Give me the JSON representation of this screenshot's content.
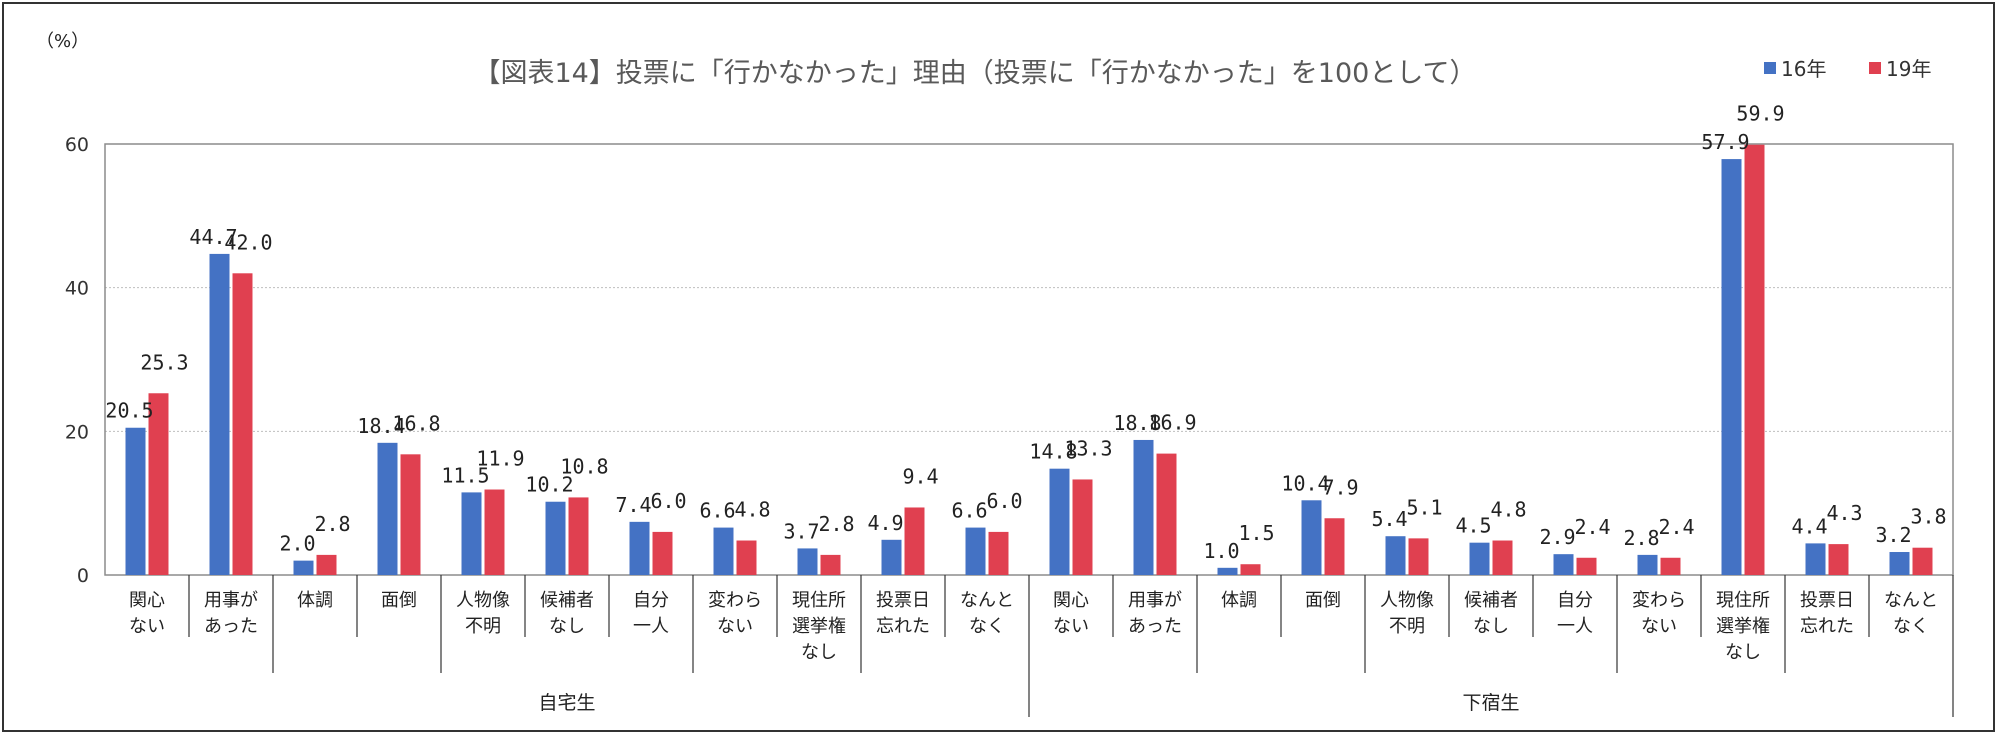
{
  "chart_data": {
    "type": "bar",
    "title": "【図表14】投票に「行かなかった」理由（投票に「行かなかった」を100として）",
    "unit_label": "（%）",
    "ylim": [
      0,
      60
    ],
    "yticks": [
      "0",
      "20",
      "40",
      "60"
    ],
    "grid": true,
    "legend_position": "top-right",
    "groups": [
      {
        "name": "自宅生",
        "categories": [
          "関心\nない",
          "用事が\nあった",
          "体調",
          "面倒",
          "人物像\n不明",
          "候補者\nなし",
          "自分\n一人",
          "変わら\nない",
          "現住所\n選挙権\nなし",
          "投票日\n忘れた",
          "なんと\nなく"
        ]
      },
      {
        "name": "下宿生",
        "categories": [
          "関心\nない",
          "用事が\nあった",
          "体調",
          "面倒",
          "人物像\n不明",
          "候補者\nなし",
          "自分\n一人",
          "変わら\nない",
          "現住所\n選挙権\nなし",
          "投票日\n忘れた",
          "なんと\nなく"
        ]
      }
    ],
    "series": [
      {
        "name": "16年",
        "color": "#4472C4",
        "values": [
          20.5,
          44.7,
          2.0,
          18.4,
          11.5,
          10.2,
          7.4,
          6.6,
          3.7,
          4.9,
          6.6,
          14.8,
          18.8,
          1.0,
          10.4,
          5.4,
          4.5,
          2.9,
          2.8,
          57.9,
          4.4,
          3.2
        ],
        "labels": [
          "20.5",
          "44.7",
          "2.0",
          "18.4",
          "11.5",
          "10.2",
          "7.4",
          "6.6",
          "3.7",
          "4.9",
          "6.6",
          "14.8",
          "18.8",
          "1.0",
          "10.4",
          "5.4",
          "4.5",
          "2.9",
          "2.8",
          "57.9",
          "4.4",
          "3.2"
        ]
      },
      {
        "name": "19年",
        "color": "#E04050",
        "values": [
          25.3,
          42.0,
          2.8,
          16.8,
          11.9,
          10.8,
          6.0,
          4.8,
          2.8,
          9.4,
          6.0,
          13.3,
          16.9,
          1.5,
          7.9,
          5.1,
          4.8,
          2.4,
          2.4,
          59.9,
          4.3,
          3.8
        ],
        "labels": [
          "25.3",
          "42.0",
          "2.8",
          "16.8",
          "11.9",
          "10.8",
          "6.0",
          "4.8",
          "2.8",
          "9.4",
          "6.0",
          "13.3",
          "16.9",
          "1.5",
          "7.9",
          "5.1",
          "4.8",
          "2.4",
          "2.4",
          "59.9",
          "4.3",
          "3.8"
        ]
      }
    ]
  }
}
